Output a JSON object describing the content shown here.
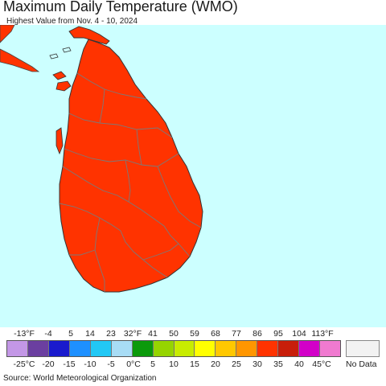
{
  "title": "Maximum Daily Temperature (WMO)",
  "subtitle": "Highest Value from Nov. 4 - 10, 2024",
  "source": "Source: World Meteorological Organization",
  "map": {
    "ocean_color": "#ccffff",
    "land_color": "#ff3300",
    "border_color": "#7a7a7a"
  },
  "legend": {
    "fahrenheit_labels": [
      "-13°F",
      "-4",
      "5",
      "14",
      "23",
      "32°F",
      "41",
      "50",
      "59",
      "68",
      "77",
      "86",
      "95",
      "104",
      "113°F"
    ],
    "celsius_labels": [
      "-25°C",
      "-20",
      "-15",
      "-10",
      "-5",
      "0°C",
      "5",
      "10",
      "15",
      "20",
      "25",
      "30",
      "35",
      "40",
      "45°C"
    ],
    "colors": [
      "#c397e6",
      "#6b3fa0",
      "#1a1acd",
      "#1e90ff",
      "#22c8f5",
      "#a8dcf5",
      "#0b9a0b",
      "#96d400",
      "#c8ec00",
      "#ffff00",
      "#ffc800",
      "#ff9600",
      "#ff3300",
      "#c81e0a",
      "#d200c8",
      "#f07ad0"
    ],
    "nodata_label": "No Data",
    "nodata_color": "#f2f2f2"
  }
}
